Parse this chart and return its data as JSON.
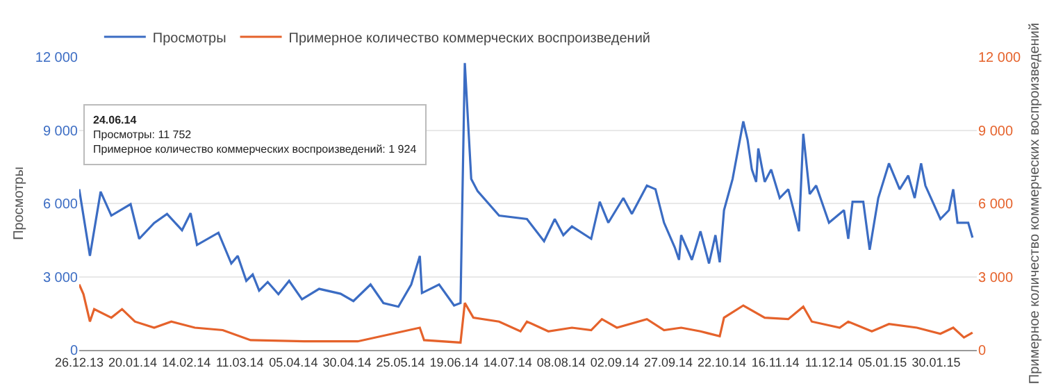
{
  "chart_data": {
    "type": "line",
    "ylabel": "Просмотры",
    "y2label": "Примерное количество коммерческих воспроизведений",
    "legend": "top left",
    "grid": "y",
    "marker": "none",
    "line_style": "solid",
    "xlim": [
      "2013-12-26",
      "2015-02-18"
    ],
    "xticks": [
      {
        "value": "2013-12-26",
        "label": "26.12.13"
      },
      {
        "value": "2014-01-20",
        "label": "20.01.14"
      },
      {
        "value": "2014-02-14",
        "label": "14.02.14"
      },
      {
        "value": "2014-03-11",
        "label": "11.03.14"
      },
      {
        "value": "2014-04-05",
        "label": "05.04.14"
      },
      {
        "value": "2014-04-30",
        "label": "30.04.14"
      },
      {
        "value": "2014-05-25",
        "label": "25.05.14"
      },
      {
        "value": "2014-06-19",
        "label": "19.06.14"
      },
      {
        "value": "2014-07-14",
        "label": "14.07.14"
      },
      {
        "value": "2014-08-08",
        "label": "08.08.14"
      },
      {
        "value": "2014-09-02",
        "label": "02.09.14"
      },
      {
        "value": "2014-09-27",
        "label": "27.09.14"
      },
      {
        "value": "2014-10-22",
        "label": "22.10.14"
      },
      {
        "value": "2014-11-16",
        "label": "16.11.14"
      },
      {
        "value": "2014-12-11",
        "label": "11.12.14"
      },
      {
        "value": "2015-01-05",
        "label": "05.01.15"
      },
      {
        "value": "2015-01-30",
        "label": "30.01.15"
      }
    ],
    "ylim": [
      0,
      12000
    ],
    "yticks": [
      0,
      {
        "value": 3000,
        "label": "3 000"
      },
      {
        "value": 6000,
        "label": "6 000"
      },
      {
        "value": 9000,
        "label": "9 000"
      },
      {
        "value": 12000,
        "label": "12 000"
      }
    ],
    "y2lim": [
      0,
      12000
    ],
    "y2ticks": [
      0,
      {
        "value": 3000,
        "label": "3 000"
      },
      {
        "value": 6000,
        "label": "6 000"
      },
      {
        "value": 9000,
        "label": "9 000"
      },
      {
        "value": 12000,
        "label": "12 000"
      }
    ],
    "annotations": [
      "24.06.14",
      "Просмотры: 11 752",
      "Примерное количество коммерческих воспроизведений: 1 924"
    ],
    "series": [
      {
        "name": "Просмотры",
        "color": "#3b6cc3",
        "x": [
          "2013-12-26",
          "2013-12-31",
          "2014-01-05",
          "2014-01-10",
          "2014-01-19",
          "2014-01-23",
          "2014-01-30",
          "2014-02-05",
          "2014-02-12",
          "2014-02-16",
          "2014-02-19",
          "2014-03-01",
          "2014-03-07",
          "2014-03-10",
          "2014-03-14",
          "2014-03-17",
          "2014-03-20",
          "2014-03-24",
          "2014-03-29",
          "2014-04-03",
          "2014-04-09",
          "2014-04-17",
          "2014-04-27",
          "2014-05-03",
          "2014-05-11",
          "2014-05-17",
          "2014-05-24",
          "2014-05-30",
          "2014-06-03",
          "2014-06-04",
          "2014-06-12",
          "2014-06-19",
          "2014-06-22",
          "2014-06-24",
          "2014-06-27",
          "2014-06-30",
          "2014-07-10",
          "2014-07-23",
          "2014-07-31",
          "2014-08-05",
          "2014-08-09",
          "2014-08-13",
          "2014-08-22",
          "2014-08-26",
          "2014-08-30",
          "2014-09-06",
          "2014-09-10",
          "2014-09-17",
          "2014-09-21",
          "2014-09-25",
          "2014-09-30",
          "2014-10-02",
          "2014-10-03",
          "2014-10-08",
          "2014-10-12",
          "2014-10-16",
          "2014-10-19",
          "2014-10-21",
          "2014-10-23",
          "2014-10-27",
          "2014-11-01",
          "2014-11-03",
          "2014-11-05",
          "2014-11-07",
          "2014-11-08",
          "2014-11-11",
          "2014-11-14",
          "2014-11-18",
          "2014-11-22",
          "2014-11-27",
          "2014-11-29",
          "2014-12-02",
          "2014-12-05",
          "2014-12-11",
          "2014-12-18",
          "2014-12-20",
          "2014-12-22",
          "2014-12-27",
          "2014-12-30",
          "2015-01-03",
          "2015-01-08",
          "2015-01-13",
          "2015-01-17",
          "2015-01-20",
          "2015-01-23",
          "2015-01-25",
          "2015-02-01",
          "2015-02-05",
          "2015-02-07",
          "2015-02-09",
          "2015-02-14",
          "2015-02-16"
        ],
        "values": [
          6580,
          3850,
          6480,
          5500,
          5970,
          4550,
          5200,
          5570,
          4900,
          5600,
          4300,
          4800,
          3540,
          3850,
          2830,
          3090,
          2430,
          2780,
          2280,
          2830,
          2070,
          2500,
          2300,
          2000,
          2680,
          1920,
          1770,
          2680,
          3850,
          2330,
          2680,
          1820,
          1920,
          11752,
          7000,
          6500,
          5500,
          5360,
          4450,
          5360,
          4700,
          5060,
          4550,
          6070,
          5210,
          6220,
          5570,
          6730,
          6580,
          5210,
          4200,
          3690,
          4700,
          3690,
          4860,
          3540,
          4700,
          3590,
          5720,
          7000,
          9360,
          8600,
          7390,
          6880,
          8250,
          6880,
          7390,
          6220,
          6580,
          4860,
          8850,
          6380,
          6730,
          5210,
          5720,
          4550,
          6070,
          6070,
          4100,
          6220,
          7640,
          6580,
          7140,
          6220,
          7640,
          6730,
          5360,
          5720,
          6580,
          5210,
          5210,
          4600
        ]
      },
      {
        "name": "Примерное количество коммерческих воспроизведений",
        "color": "#e5622b",
        "axis": "y2",
        "x": [
          "2013-12-26",
          "2013-12-28",
          "2013-12-31",
          "2014-01-02",
          "2014-01-10",
          "2014-01-15",
          "2014-01-21",
          "2014-01-30",
          "2014-02-07",
          "2014-02-18",
          "2014-03-03",
          "2014-03-16",
          "2014-04-10",
          "2014-05-05",
          "2014-06-03",
          "2014-06-05",
          "2014-06-22",
          "2014-06-24",
          "2014-06-28",
          "2014-07-10",
          "2014-07-20",
          "2014-07-23",
          "2014-08-02",
          "2014-08-13",
          "2014-08-22",
          "2014-08-27",
          "2014-09-03",
          "2014-09-17",
          "2014-09-25",
          "2014-10-03",
          "2014-10-12",
          "2014-10-21",
          "2014-10-23",
          "2014-11-01",
          "2014-11-11",
          "2014-11-22",
          "2014-11-29",
          "2014-12-03",
          "2014-12-16",
          "2014-12-20",
          "2014-12-31",
          "2015-01-08",
          "2015-01-21",
          "2015-02-01",
          "2015-02-07",
          "2015-02-12",
          "2015-02-16"
        ],
        "values": [
          2680,
          2280,
          1160,
          1670,
          1320,
          1670,
          1160,
          910,
          1160,
          910,
          810,
          400,
          350,
          350,
          910,
          400,
          300,
          1924,
          1320,
          1160,
          760,
          1160,
          760,
          910,
          810,
          1260,
          910,
          1260,
          810,
          910,
          760,
          560,
          1320,
          1820,
          1320,
          1260,
          1770,
          1160,
          910,
          1160,
          760,
          1060,
          910,
          660,
          910,
          510,
          710
        ]
      }
    ]
  }
}
